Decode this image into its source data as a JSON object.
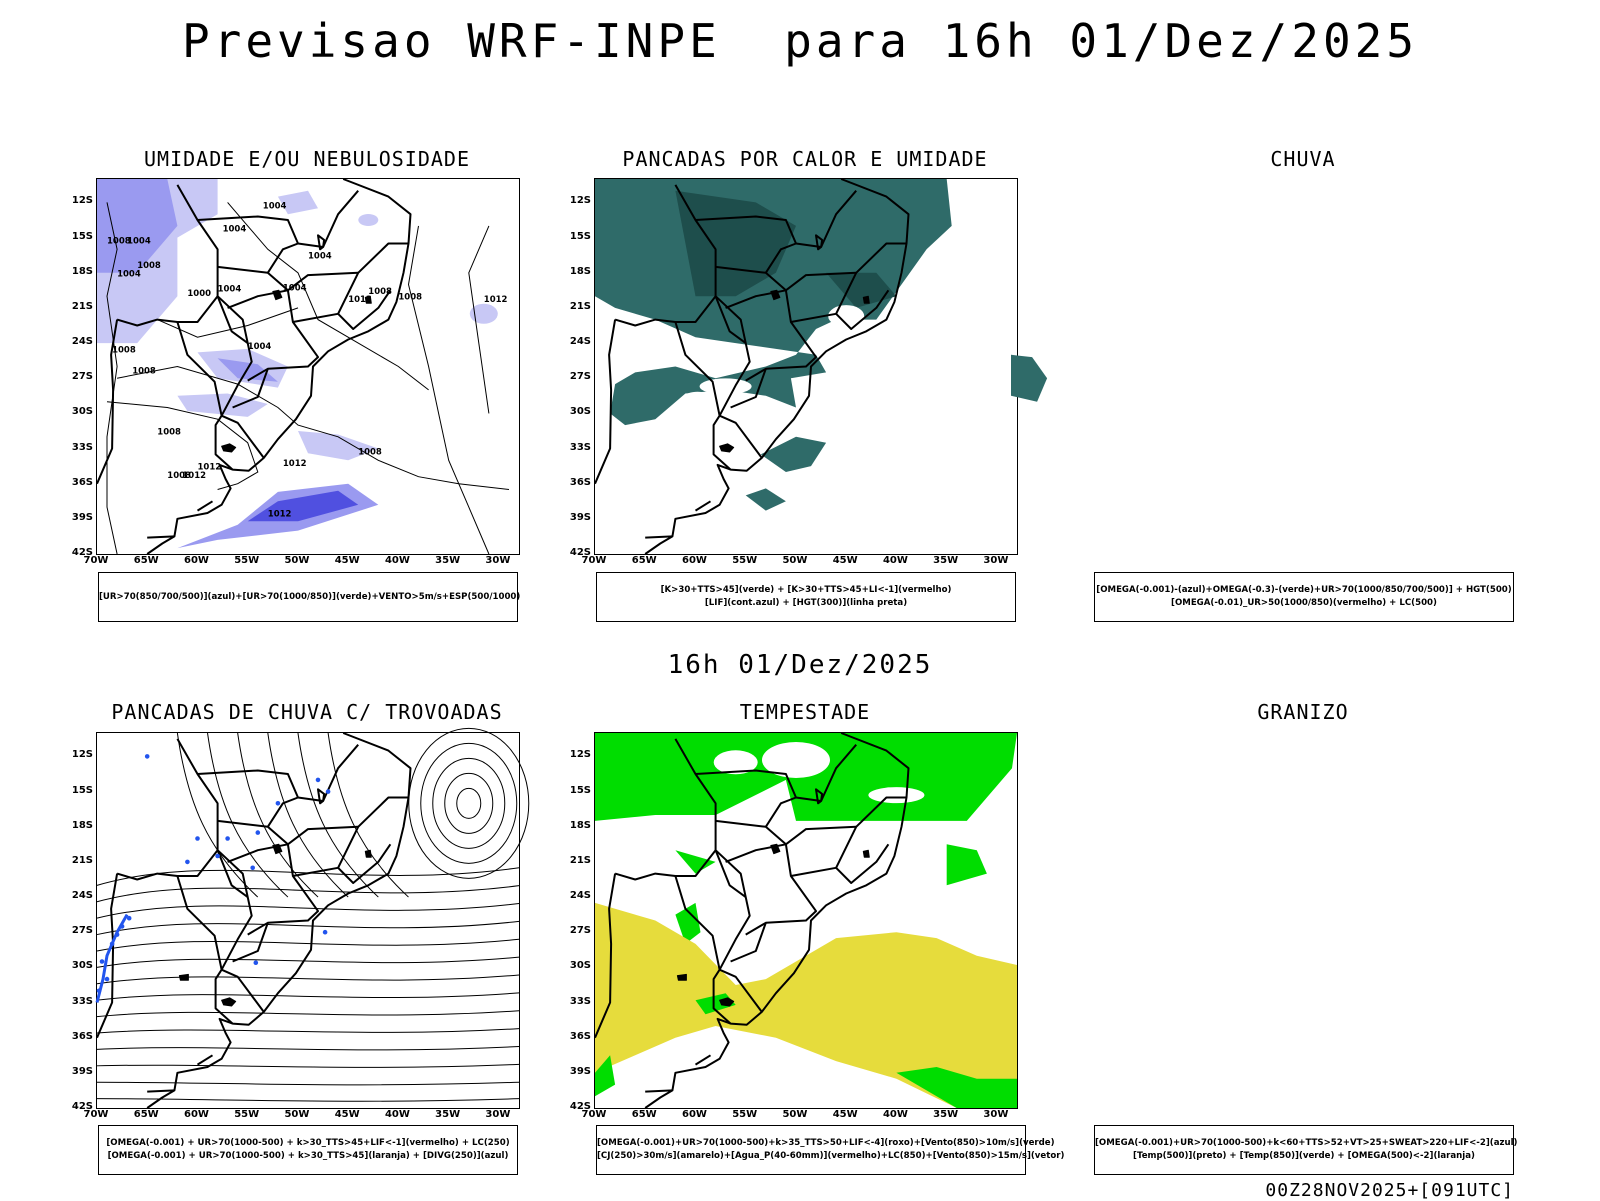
{
  "title": "Previsao WRF-INPE  para 16h 01/Dez/2025",
  "mid_time": "16h 01/Dez/2025",
  "footer": "00Z28NOV2025+[091UTC]",
  "lat_ticks": [
    "12S",
    "15S",
    "18S",
    "21S",
    "24S",
    "27S",
    "30S",
    "33S",
    "36S",
    "39S",
    "42S"
  ],
  "lon_ticks": [
    "70W",
    "65W",
    "60W",
    "55W",
    "50W",
    "45W",
    "40W",
    "35W",
    "30W"
  ],
  "colors": {
    "humidity_light": "#c8c8f5",
    "humidity_mid": "#9a9af0",
    "humidity_dark": "#5050e0",
    "heat_showers": "#2f6b69",
    "heat_showers_dark": "#1e4e4c",
    "storm_green": "#00dd00",
    "storm_yellow": "#e6dc3c",
    "thunder_blue": "#2255ee"
  },
  "panels": [
    {
      "id": "umidade",
      "title": "UMIDADE E/OU NEBULOSIDADE",
      "legend": [
        "[UR>70(850/700/500)](azul)+[UR>70(1000/850)](verde)+VENTO>5m/s+ESP(500/1000)"
      ],
      "contour_labels": [
        "1004",
        "1004",
        "1008",
        "1004",
        "1008",
        "1004",
        "1000",
        "1004",
        "1004",
        "1008",
        "1012",
        "1004",
        "1012",
        "1008",
        "1004",
        "1008",
        "1008",
        "1008",
        "1008",
        "1012",
        "1012",
        "1008",
        "1012",
        "1012"
      ]
    },
    {
      "id": "pancadas_calor",
      "title": "PANCADAS POR CALOR E UMIDADE",
      "legend": [
        "[K>30+TTS>45](verde) + [K>30+TTS>45+LI<-1](vermelho)",
        "[LIF](cont.azul) + [HGT(300)](linha preta)"
      ]
    },
    {
      "id": "chuva",
      "title": "CHUVA",
      "legend": [
        "[OMEGA(-0.001)-(azul)+OMEGA(-0.3)-(verde)+UR>70(1000/850/700/500)] + HGT(500)",
        "[OMEGA(-0.01)_UR>50(1000/850)(vermelho) + LC(500)"
      ]
    },
    {
      "id": "trovoadas",
      "title": "PANCADAS DE CHUVA C/ TROVOADAS",
      "legend": [
        "[OMEGA(-0.001) + UR>70(1000-500) + k>30_TTS>45+LIF<-1](vermelho) + LC(250)",
        "[OMEGA(-0.001) + UR>70(1000-500) + k>30_TTS>45](laranja) + [DIVG(250)](azul)"
      ]
    },
    {
      "id": "tempestade",
      "title": "TEMPESTADE",
      "legend": [
        "[OMEGA(-0.001)+UR>70(1000-500)+k>35_TTS>50+LIF<-4](roxo)+[Vento(850)>10m/s](verde)",
        "[CJ(250)>30m/s](amarelo)+[Agua_P(40-60mm)](vermelho)+LC(850)+[Vento(850)>15m/s](vetor)"
      ]
    },
    {
      "id": "granizo",
      "title": "GRANIZO",
      "legend": [
        "[OMEGA(-0.001)+UR>70(1000-500)+k<60+TTS>52+VT>25+SWEAT>220+LIF<-2](azul)",
        "[Temp(500)](preto) + [Temp(850)](verde) + [OMEGA(500)<-2](laranja)"
      ]
    }
  ]
}
